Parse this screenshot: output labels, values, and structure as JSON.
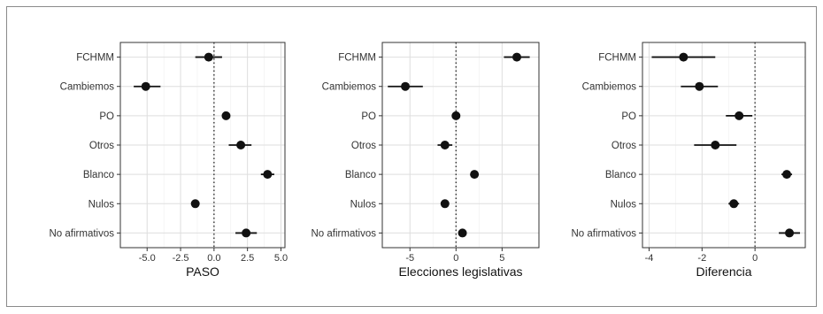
{
  "chart_data": [
    {
      "type": "scatter",
      "xlabel": "PASO",
      "xlim": [
        -7,
        5.3
      ],
      "xticks": [
        -5.0,
        -2.5,
        0.0,
        2.5,
        5.0
      ],
      "xtick_labels": [
        "-5.0",
        "-2.5",
        "0.0",
        "2.5",
        "5.0"
      ],
      "categories": [
        "FCHMM",
        "Cambiemos",
        "PO",
        "Otros",
        "Blanco",
        "Nulos",
        "No afirmativos"
      ],
      "values": [
        -0.4,
        -5.1,
        0.9,
        2.0,
        4.0,
        -1.4,
        2.4
      ],
      "ci_low": [
        -1.4,
        -6.0,
        0.7,
        1.1,
        3.5,
        -1.6,
        1.6
      ],
      "ci_high": [
        0.6,
        -4.0,
        1.1,
        2.8,
        4.5,
        -1.2,
        3.2
      ],
      "reference_line": 0,
      "grid": true
    },
    {
      "type": "scatter",
      "xlabel": "Elecciones legislativas",
      "xlim": [
        -8.0,
        9.0
      ],
      "xticks": [
        -5,
        0,
        5
      ],
      "xtick_labels": [
        "-5",
        "0",
        "5"
      ],
      "categories": [
        "FCHMM",
        "Cambiemos",
        "PO",
        "Otros",
        "Blanco",
        "Nulos",
        "No afirmativos"
      ],
      "values": [
        6.6,
        -5.5,
        0.0,
        -1.2,
        2.0,
        -1.2,
        0.7
      ],
      "ci_low": [
        5.2,
        -7.4,
        -0.2,
        -2.0,
        1.8,
        -1.4,
        0.5
      ],
      "ci_high": [
        8.0,
        -3.6,
        0.2,
        -0.4,
        2.2,
        -1.0,
        0.9
      ],
      "reference_line": 0,
      "grid": true
    },
    {
      "type": "scatter",
      "xlabel": "Diferencia",
      "xlim": [
        -4.25,
        1.9
      ],
      "xticks": [
        -4,
        -2,
        0
      ],
      "xtick_labels": [
        "-4",
        "-2",
        "0"
      ],
      "categories": [
        "FCHMM",
        "Cambiemos",
        "PO",
        "Otros",
        "Blanco",
        "Nulos",
        "No afirmativos"
      ],
      "values": [
        -2.7,
        -2.1,
        -0.6,
        -1.5,
        1.2,
        -0.8,
        1.3
      ],
      "ci_low": [
        -3.9,
        -2.8,
        -1.1,
        -2.3,
        1.0,
        -1.0,
        0.9
      ],
      "ci_high": [
        -1.5,
        -1.4,
        -0.1,
        -0.7,
        1.4,
        -0.6,
        1.7
      ],
      "reference_line": 0,
      "grid": true
    }
  ]
}
